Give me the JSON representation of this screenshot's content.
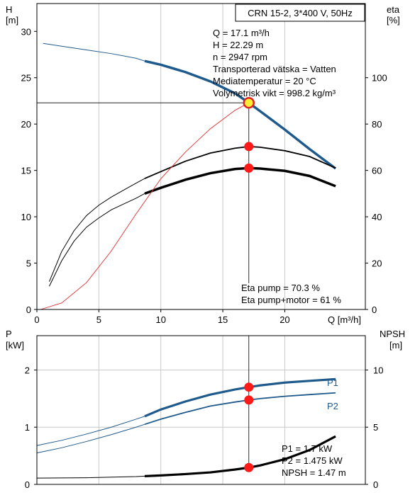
{
  "chart_data": [
    {
      "type": "line",
      "title": "CRN 15-2, 3*400 V, 50Hz",
      "xlabel": "Q [m³/h]",
      "ylabel_left": "H",
      "ylabel_left_unit": "[m]",
      "ylabel_right": "eta",
      "ylabel_right_unit": "[%]",
      "xlim": [
        0,
        26.5
      ],
      "ylim_left": [
        0,
        33
      ],
      "ylim_right": [
        0,
        132
      ],
      "x_ticks": [
        "0",
        "5",
        "10",
        "15",
        "20"
      ],
      "x_tick_values": [
        0,
        5,
        10,
        15,
        20
      ],
      "y_left_ticks": [
        "0",
        "5",
        "10",
        "15",
        "20",
        "25",
        "30"
      ],
      "y_left_tick_values": [
        0,
        5,
        10,
        15,
        20,
        25,
        30
      ],
      "y_right_ticks": [
        "0",
        "20",
        "40",
        "60",
        "80",
        "100"
      ],
      "y_right_tick_values": [
        0,
        20,
        40,
        60,
        80,
        100
      ],
      "grid": true,
      "info_lines": [
        "Q = 17.1 m³/h",
        "H = 22.29 m",
        "n = 2947 rpm",
        "Transporterad vätska = Vatten",
        "Mediatemperatur = 20 °C",
        "Volymetrisk vikt = 998.2 kg/m³"
      ],
      "eta_lines": [
        "Eta pump = 70.3 %",
        "Eta pump+motor = 61 %"
      ],
      "duty_point": {
        "q": 17.1,
        "h": 22.29
      },
      "series": [
        {
          "color": "#1f5a8c",
          "x": [
            0.5,
            2,
            4,
            6,
            8,
            8.7,
            10,
            12,
            14,
            16,
            17.1,
            18,
            20,
            22,
            24.1
          ],
          "y": [
            28.7,
            28.4,
            28.0,
            27.6,
            27.1,
            26.8,
            26.4,
            25.6,
            24.6,
            23.3,
            22.29,
            21.4,
            19.4,
            17.3,
            15.2
          ]
        },
        {
          "color": "#000000",
          "x": [
            1.0,
            2,
            3,
            4,
            5,
            6,
            7,
            8,
            8.7,
            10,
            12,
            14,
            16,
            17.1,
            18,
            20,
            22,
            24.1
          ],
          "y": [
            12,
            25,
            34,
            40.5,
            45,
            48.5,
            51.5,
            54.5,
            56.5,
            59.5,
            64,
            67.5,
            69.6,
            70.3,
            70.0,
            68.5,
            66,
            61
          ]
        },
        {
          "color": "#000000",
          "x": [
            1.0,
            2,
            3,
            4,
            5,
            6,
            7,
            8,
            8.7,
            10,
            12,
            14,
            16,
            17.1,
            18,
            20,
            22,
            24.1
          ],
          "y": [
            10,
            21,
            29.5,
            35.5,
            39.5,
            43,
            45.5,
            48,
            50,
            52.5,
            56,
            58.8,
            60.6,
            61,
            60.8,
            59.8,
            57.6,
            53.2
          ]
        },
        {
          "color": "#e03030",
          "x": [
            0.3,
            2,
            4,
            6,
            8,
            10,
            12,
            14,
            16,
            17.1
          ],
          "y": [
            0,
            0.7,
            2.9,
            6.3,
            10.3,
            14.1,
            17.0,
            19.5,
            21.5,
            22.29
          ]
        }
      ],
      "markers": [
        {
          "x": 17.1,
          "y": 22.29,
          "axis": "left",
          "kind": "duty"
        },
        {
          "x": 17.1,
          "y": 70.3,
          "axis": "right",
          "kind": "point"
        },
        {
          "x": 17.1,
          "y": 61,
          "axis": "right",
          "kind": "point"
        }
      ]
    },
    {
      "type": "line",
      "title": "",
      "ylabel_left": "P",
      "ylabel_left_unit": "[kW]",
      "ylabel_right": "NPSH",
      "ylabel_right_unit": "[m]",
      "xlim": [
        0,
        26.5
      ],
      "ylim_left": [
        0,
        2.6
      ],
      "ylim_right": [
        0,
        13
      ],
      "y_left_ticks": [
        "0",
        "1",
        "2"
      ],
      "y_left_tick_values": [
        0,
        1,
        2
      ],
      "y_right_ticks": [
        "0",
        "5",
        "10"
      ],
      "y_right_tick_values": [
        0,
        5,
        10
      ],
      "grid": true,
      "info_lines": [
        "P1 = 1.7 kW",
        "P2 = 1.475 kW",
        "NPSH = 1.47 m"
      ],
      "series": [
        {
          "name": "P1",
          "color": "#1f5a8c",
          "x": [
            0,
            2,
            4,
            6,
            8,
            8.7,
            10,
            12,
            14,
            16,
            17.1,
            18,
            20,
            22,
            24.1
          ],
          "y": [
            0.68,
            0.77,
            0.88,
            1.0,
            1.14,
            1.19,
            1.31,
            1.45,
            1.57,
            1.66,
            1.7,
            1.73,
            1.78,
            1.81,
            1.84
          ]
        },
        {
          "name": "P2",
          "color": "#1f5a8c",
          "x": [
            0,
            2,
            4,
            6,
            8,
            8.7,
            10,
            12,
            14,
            16,
            17.1,
            18,
            20,
            22,
            24.1
          ],
          "y": [
            0.55,
            0.64,
            0.75,
            0.87,
            1.0,
            1.05,
            1.14,
            1.26,
            1.37,
            1.44,
            1.475,
            1.5,
            1.54,
            1.57,
            1.6
          ]
        },
        {
          "color": "#000000",
          "axis": "right",
          "x": [
            0,
            4,
            8,
            8.7,
            10,
            12,
            14,
            16,
            17.1,
            18,
            20,
            22,
            24.1
          ],
          "y": [
            0.55,
            0.58,
            0.68,
            0.72,
            0.78,
            0.9,
            1.05,
            1.3,
            1.47,
            1.65,
            2.2,
            3.0,
            4.2
          ]
        }
      ],
      "markers": [
        {
          "x": 17.1,
          "y": 1.7,
          "axis": "left",
          "kind": "point"
        },
        {
          "x": 17.1,
          "y": 1.475,
          "axis": "left",
          "kind": "point"
        },
        {
          "x": 17.1,
          "y": 1.47,
          "axis": "right",
          "kind": "point"
        }
      ]
    }
  ]
}
